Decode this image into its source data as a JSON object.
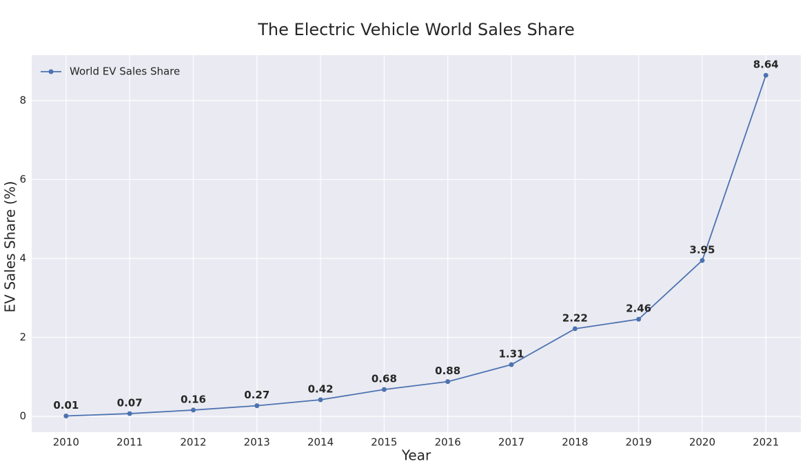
{
  "chart_data": {
    "type": "line",
    "title": "The Electric Vehicle World Sales Share",
    "xlabel": "Year",
    "ylabel": "EV Sales Share (%)",
    "x": [
      2010,
      2011,
      2012,
      2013,
      2014,
      2015,
      2016,
      2017,
      2018,
      2019,
      2020,
      2021
    ],
    "series": [
      {
        "name": "World EV Sales Share",
        "color": "#4c72b0",
        "values": [
          0.01,
          0.07,
          0.16,
          0.27,
          0.42,
          0.68,
          0.88,
          1.31,
          2.22,
          2.46,
          3.95,
          8.64
        ]
      }
    ],
    "xlim": [
      2009.46,
      2021.55
    ],
    "xticks": [
      2010,
      2011,
      2012,
      2013,
      2014,
      2015,
      2016,
      2017,
      2018,
      2019,
      2020,
      2021
    ],
    "ylim": [
      -0.4,
      9.15
    ],
    "yticks": [
      0,
      2,
      4,
      6,
      8
    ],
    "grid": true,
    "legend": "upper-left",
    "data_labels": true
  }
}
